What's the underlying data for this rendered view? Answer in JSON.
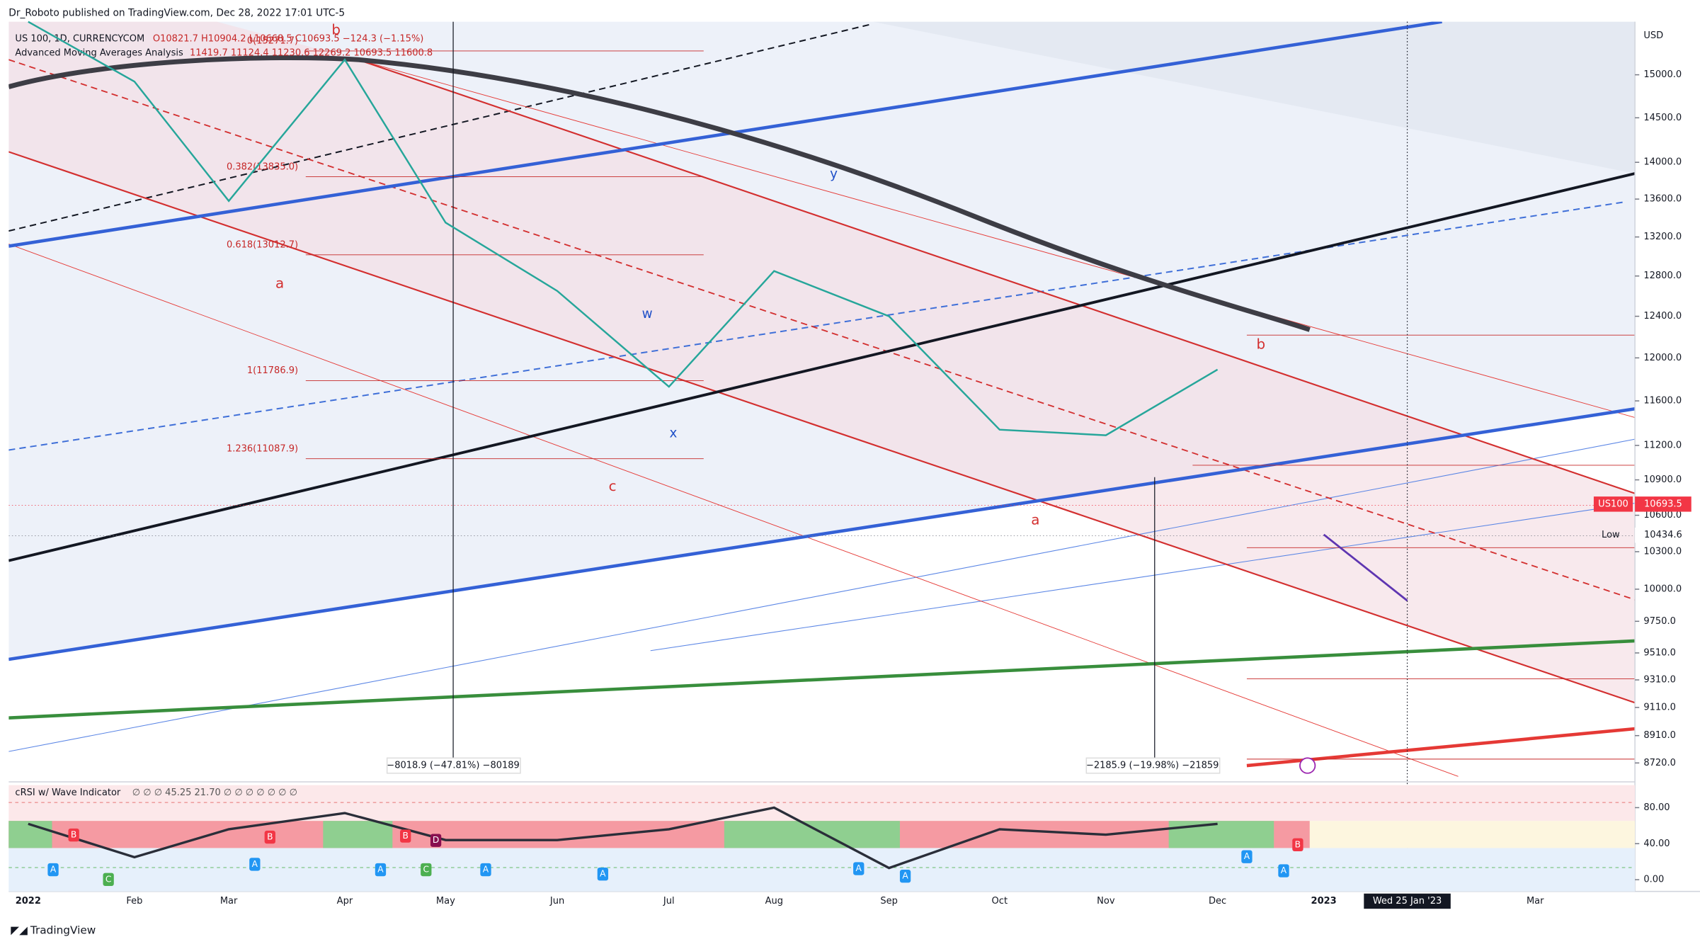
{
  "header": {
    "publisher": "Dr_Roboto published on TradingView.com, Dec 28, 2022 17:01 UTC-5",
    "symbol": "US 100, 1D, CURRENCYCOM",
    "ohlc": "O10821.7 H10904.2 L10668.5 C10693.5 −124.3 (−1.15%)",
    "indicator": "Advanced Moving Averages Analysis",
    "indicator_values": "11419.7 11124.4 11230.6 12269.2 10693.5 11600.8"
  },
  "chart_data": {
    "type": "line",
    "currency": "USD",
    "log_scale": true,
    "categories": [
      "2022",
      "Feb",
      "Mar",
      "Apr",
      "May",
      "Jun",
      "Jul",
      "Aug",
      "Sep",
      "Oct",
      "Nov",
      "Dec",
      "2023",
      "Wed 25 Jan '23",
      "Mar"
    ],
    "series": [
      {
        "name": "US100",
        "color": "#26a69a",
        "values": [
          15640,
          14920,
          13580,
          15180,
          13350,
          12650,
          11730,
          12850,
          12400,
          11340,
          11290,
          11890,
          null,
          null,
          null
        ]
      },
      {
        "name": "Projection",
        "color": "#5e35b1",
        "values": [
          null,
          null,
          null,
          null,
          null,
          null,
          null,
          null,
          null,
          null,
          null,
          null,
          10440,
          9910,
          null
        ]
      }
    ],
    "ylim": [
      8613,
      15641
    ],
    "yticks": [
      {
        "value": 15000,
        "label": "15000.0"
      },
      {
        "value": 14500,
        "label": "14500.0"
      },
      {
        "value": 14000,
        "label": "14000.0"
      },
      {
        "value": 13600,
        "label": "13600.0"
      },
      {
        "value": 13200,
        "label": "13200.0"
      },
      {
        "value": 12800,
        "label": "12800.0"
      },
      {
        "value": 12400,
        "label": "12400.0"
      },
      {
        "value": 12000,
        "label": "12000.0"
      },
      {
        "value": 11600,
        "label": "11600.0"
      },
      {
        "value": 11200,
        "label": "11200.0"
      },
      {
        "value": 10900,
        "label": "10900.0"
      },
      {
        "value": 10600,
        "label": "10600.0"
      },
      {
        "value": 10300,
        "label": "10300.0"
      },
      {
        "value": 10000,
        "label": "10000.0"
      },
      {
        "value": 9750,
        "label": "9750.0"
      },
      {
        "value": 9510,
        "label": "9510.0"
      },
      {
        "value": 9310,
        "label": "9310.0"
      },
      {
        "value": 9110,
        "label": "9110.0"
      },
      {
        "value": 8910,
        "label": "8910.0"
      },
      {
        "value": 8720,
        "label": "8720.0"
      }
    ],
    "last_price": {
      "name": "US100",
      "value": 10693.5,
      "label": "10693.5"
    },
    "low": {
      "name": "Low",
      "value": 10434.6,
      "label": "10434.6"
    }
  },
  "fib": [
    "0(15271.7)",
    "0.382(13835.0)",
    "0.618(13012.7)",
    "1(11786.9)",
    "1.236(11087.9)"
  ],
  "waves": [
    "a",
    "b",
    "c",
    "w",
    "x",
    "y",
    "a",
    "b"
  ],
  "measures": [
    "−8018.9 (−47.81%) −80189",
    "−2185.9 (−19.98%) −21859"
  ],
  "rsi": {
    "title": "cRSI w/ Wave Indicator",
    "params": "∅ ∅ ∅ 45.25 21.70 ∅ ∅ ∅ ∅ ∅ ∅ ∅",
    "values": [
      62,
      25,
      56,
      74,
      44,
      44,
      56,
      80,
      13,
      56,
      50,
      62,
      null,
      null,
      null
    ],
    "ylim": [
      -13,
      105
    ],
    "yticks": [
      {
        "value": 80,
        "label": "80.00"
      },
      {
        "value": 40,
        "label": "40.00"
      },
      {
        "value": 0,
        "label": "0.00"
      }
    ],
    "markers": [
      "A",
      "A",
      "A",
      "A",
      "A",
      "A",
      "A",
      "A",
      "A",
      "B",
      "B",
      "B",
      "B",
      "C",
      "C",
      "D"
    ]
  },
  "footer": "TradingView"
}
